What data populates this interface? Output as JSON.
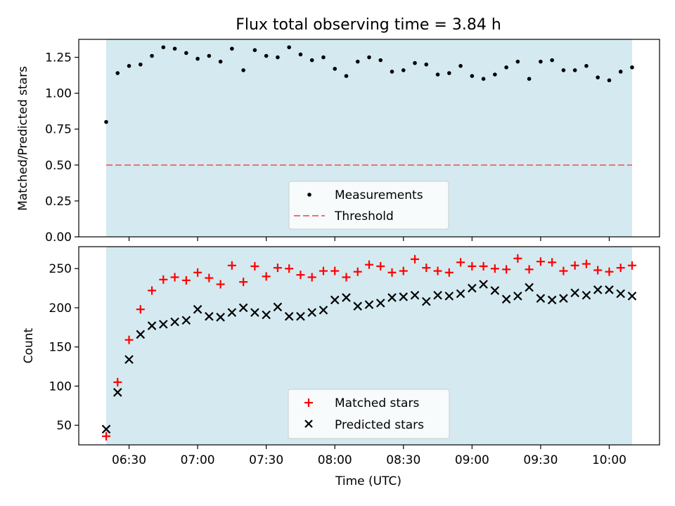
{
  "chart_data": [
    {
      "type": "scatter",
      "title": "Flux total observing time = 3.84 h",
      "ylabel": "Matched/Predicted stars",
      "xlabel": "",
      "ylim": [
        0.0,
        1.375
      ],
      "yticks": [
        "0.00",
        "0.25",
        "0.50",
        "0.75",
        "1.00",
        "1.25"
      ],
      "xticks": [
        "06:30",
        "07:00",
        "07:30",
        "08:00",
        "08:30",
        "09:00",
        "09:30",
        "10:00"
      ],
      "xlim": [
        "06:08",
        "10:22"
      ],
      "shaded_span": [
        "06:20",
        "10:10"
      ],
      "shade_color": "#d4eaf0",
      "threshold": {
        "name": "Threshold",
        "value": 0.5,
        "style": "dashed",
        "color": "#f07070"
      },
      "legend": "lower-center",
      "series": [
        {
          "name": "Measurements",
          "marker": "dot",
          "color": "#000000",
          "x": [
            "06:20",
            "06:25",
            "06:30",
            "06:35",
            "06:40",
            "06:45",
            "06:50",
            "06:55",
            "07:00",
            "07:05",
            "07:10",
            "07:15",
            "07:20",
            "07:25",
            "07:30",
            "07:35",
            "07:40",
            "07:45",
            "07:50",
            "07:55",
            "08:00",
            "08:05",
            "08:10",
            "08:15",
            "08:20",
            "08:25",
            "08:30",
            "08:35",
            "08:40",
            "08:45",
            "08:50",
            "08:55",
            "09:00",
            "09:05",
            "09:10",
            "09:15",
            "09:20",
            "09:25",
            "09:30",
            "09:35",
            "09:40",
            "09:45",
            "09:50",
            "09:55",
            "10:00",
            "10:05",
            "10:10"
          ],
          "values": [
            0.8,
            1.14,
            1.19,
            1.2,
            1.26,
            1.32,
            1.31,
            1.28,
            1.24,
            1.26,
            1.22,
            1.31,
            1.16,
            1.3,
            1.26,
            1.25,
            1.32,
            1.27,
            1.23,
            1.25,
            1.17,
            1.12,
            1.22,
            1.25,
            1.23,
            1.15,
            1.16,
            1.21,
            1.2,
            1.13,
            1.14,
            1.19,
            1.12,
            1.1,
            1.13,
            1.18,
            1.22,
            1.1,
            1.22,
            1.23,
            1.16,
            1.16,
            1.19,
            1.11,
            1.09,
            1.15,
            1.18
          ]
        }
      ]
    },
    {
      "type": "scatter",
      "title": "",
      "ylabel": "Count",
      "xlabel": "Time (UTC)",
      "ylim": [
        25,
        278
      ],
      "yticks": [
        "50",
        "100",
        "150",
        "200",
        "250"
      ],
      "xticks": [
        "06:30",
        "07:00",
        "07:30",
        "08:00",
        "08:30",
        "09:00",
        "09:30",
        "10:00"
      ],
      "xlim": [
        "06:08",
        "10:22"
      ],
      "shaded_span": [
        "06:20",
        "10:10"
      ],
      "shade_color": "#d4eaf0",
      "legend": "lower-center",
      "series": [
        {
          "name": "Matched stars",
          "marker": "plus",
          "color": "#ff0000",
          "x": [
            "06:20",
            "06:25",
            "06:30",
            "06:35",
            "06:40",
            "06:45",
            "06:50",
            "06:55",
            "07:00",
            "07:05",
            "07:10",
            "07:15",
            "07:20",
            "07:25",
            "07:30",
            "07:35",
            "07:40",
            "07:45",
            "07:50",
            "07:55",
            "08:00",
            "08:05",
            "08:10",
            "08:15",
            "08:20",
            "08:25",
            "08:30",
            "08:35",
            "08:40",
            "08:45",
            "08:50",
            "08:55",
            "09:00",
            "09:05",
            "09:10",
            "09:15",
            "09:20",
            "09:25",
            "09:30",
            "09:35",
            "09:40",
            "09:45",
            "09:50",
            "09:55",
            "10:00",
            "10:05",
            "10:10"
          ],
          "values": [
            36,
            105,
            159,
            198,
            222,
            236,
            239,
            235,
            245,
            238,
            230,
            254,
            233,
            253,
            240,
            251,
            250,
            242,
            239,
            247,
            247,
            239,
            246,
            255,
            253,
            245,
            247,
            262,
            251,
            247,
            245,
            258,
            253,
            253,
            250,
            249,
            263,
            249,
            259,
            258,
            247,
            254,
            256,
            248,
            246,
            251,
            254
          ]
        },
        {
          "name": "Predicted stars",
          "marker": "cross",
          "color": "#000000",
          "x": [
            "06:20",
            "06:25",
            "06:30",
            "06:35",
            "06:40",
            "06:45",
            "06:50",
            "06:55",
            "07:00",
            "07:05",
            "07:10",
            "07:15",
            "07:20",
            "07:25",
            "07:30",
            "07:35",
            "07:40",
            "07:45",
            "07:50",
            "07:55",
            "08:00",
            "08:05",
            "08:10",
            "08:15",
            "08:20",
            "08:25",
            "08:30",
            "08:35",
            "08:40",
            "08:45",
            "08:50",
            "08:55",
            "09:00",
            "09:05",
            "09:10",
            "09:15",
            "09:20",
            "09:25",
            "09:30",
            "09:35",
            "09:40",
            "09:45",
            "09:50",
            "09:55",
            "10:00",
            "10:05",
            "10:10"
          ],
          "values": [
            45,
            92,
            134,
            166,
            177,
            179,
            182,
            184,
            198,
            189,
            188,
            194,
            200,
            194,
            191,
            201,
            189,
            189,
            194,
            197,
            210,
            213,
            202,
            204,
            206,
            213,
            214,
            216,
            208,
            216,
            215,
            218,
            225,
            230,
            222,
            211,
            215,
            226,
            212,
            210,
            212,
            219,
            216,
            223,
            223,
            218,
            215
          ]
        }
      ]
    }
  ]
}
